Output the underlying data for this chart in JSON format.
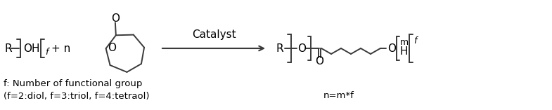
{
  "bg_color": "#ffffff",
  "line_color": "#3a3a3a",
  "text_color": "#000000",
  "figsize": [
    7.85,
    1.57
  ],
  "dpi": 100,
  "catalyst_label": "Catalyst",
  "footnote_line1": "f: Number of functional group",
  "footnote_line2": "(f=2:diol, f=3:triol, f=4:tetraol)",
  "product_note": "n=m*f"
}
